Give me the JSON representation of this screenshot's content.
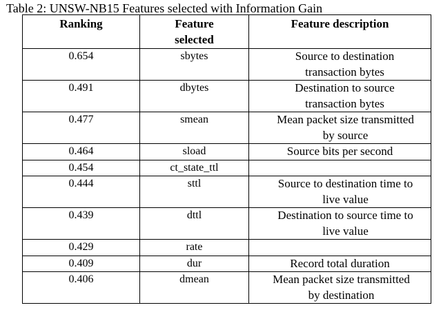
{
  "caption": "Table 2: UNSW-NB15 Features selected with Information Gain",
  "table": {
    "headers": [
      "Ranking",
      "Feature selected",
      "Feature description"
    ],
    "rows": [
      {
        "ranking": "0.654",
        "feature": "sbytes",
        "description": "Source to destination transaction bytes"
      },
      {
        "ranking": "0.491",
        "feature": "dbytes",
        "description": "Destination to source transaction bytes"
      },
      {
        "ranking": "0.477",
        "feature": "smean",
        "description": "Mean packet size transmitted by source"
      },
      {
        "ranking": "0.464",
        "feature": "sload",
        "description": "Source bits per second"
      },
      {
        "ranking": "0.454",
        "feature": "ct_state_ttl",
        "description": ""
      },
      {
        "ranking": "0.444",
        "feature": "sttl",
        "description": "Source to destination time to live value"
      },
      {
        "ranking": "0.439",
        "feature": "dttl",
        "description": "Destination to source time to live value"
      },
      {
        "ranking": "0.429",
        "feature": "rate",
        "description": ""
      },
      {
        "ranking": "0.409",
        "feature": "dur",
        "description": "Record total duration"
      },
      {
        "ranking": "0.406",
        "feature": "dmean",
        "description": "Mean packet size transmitted by destination"
      }
    ]
  }
}
